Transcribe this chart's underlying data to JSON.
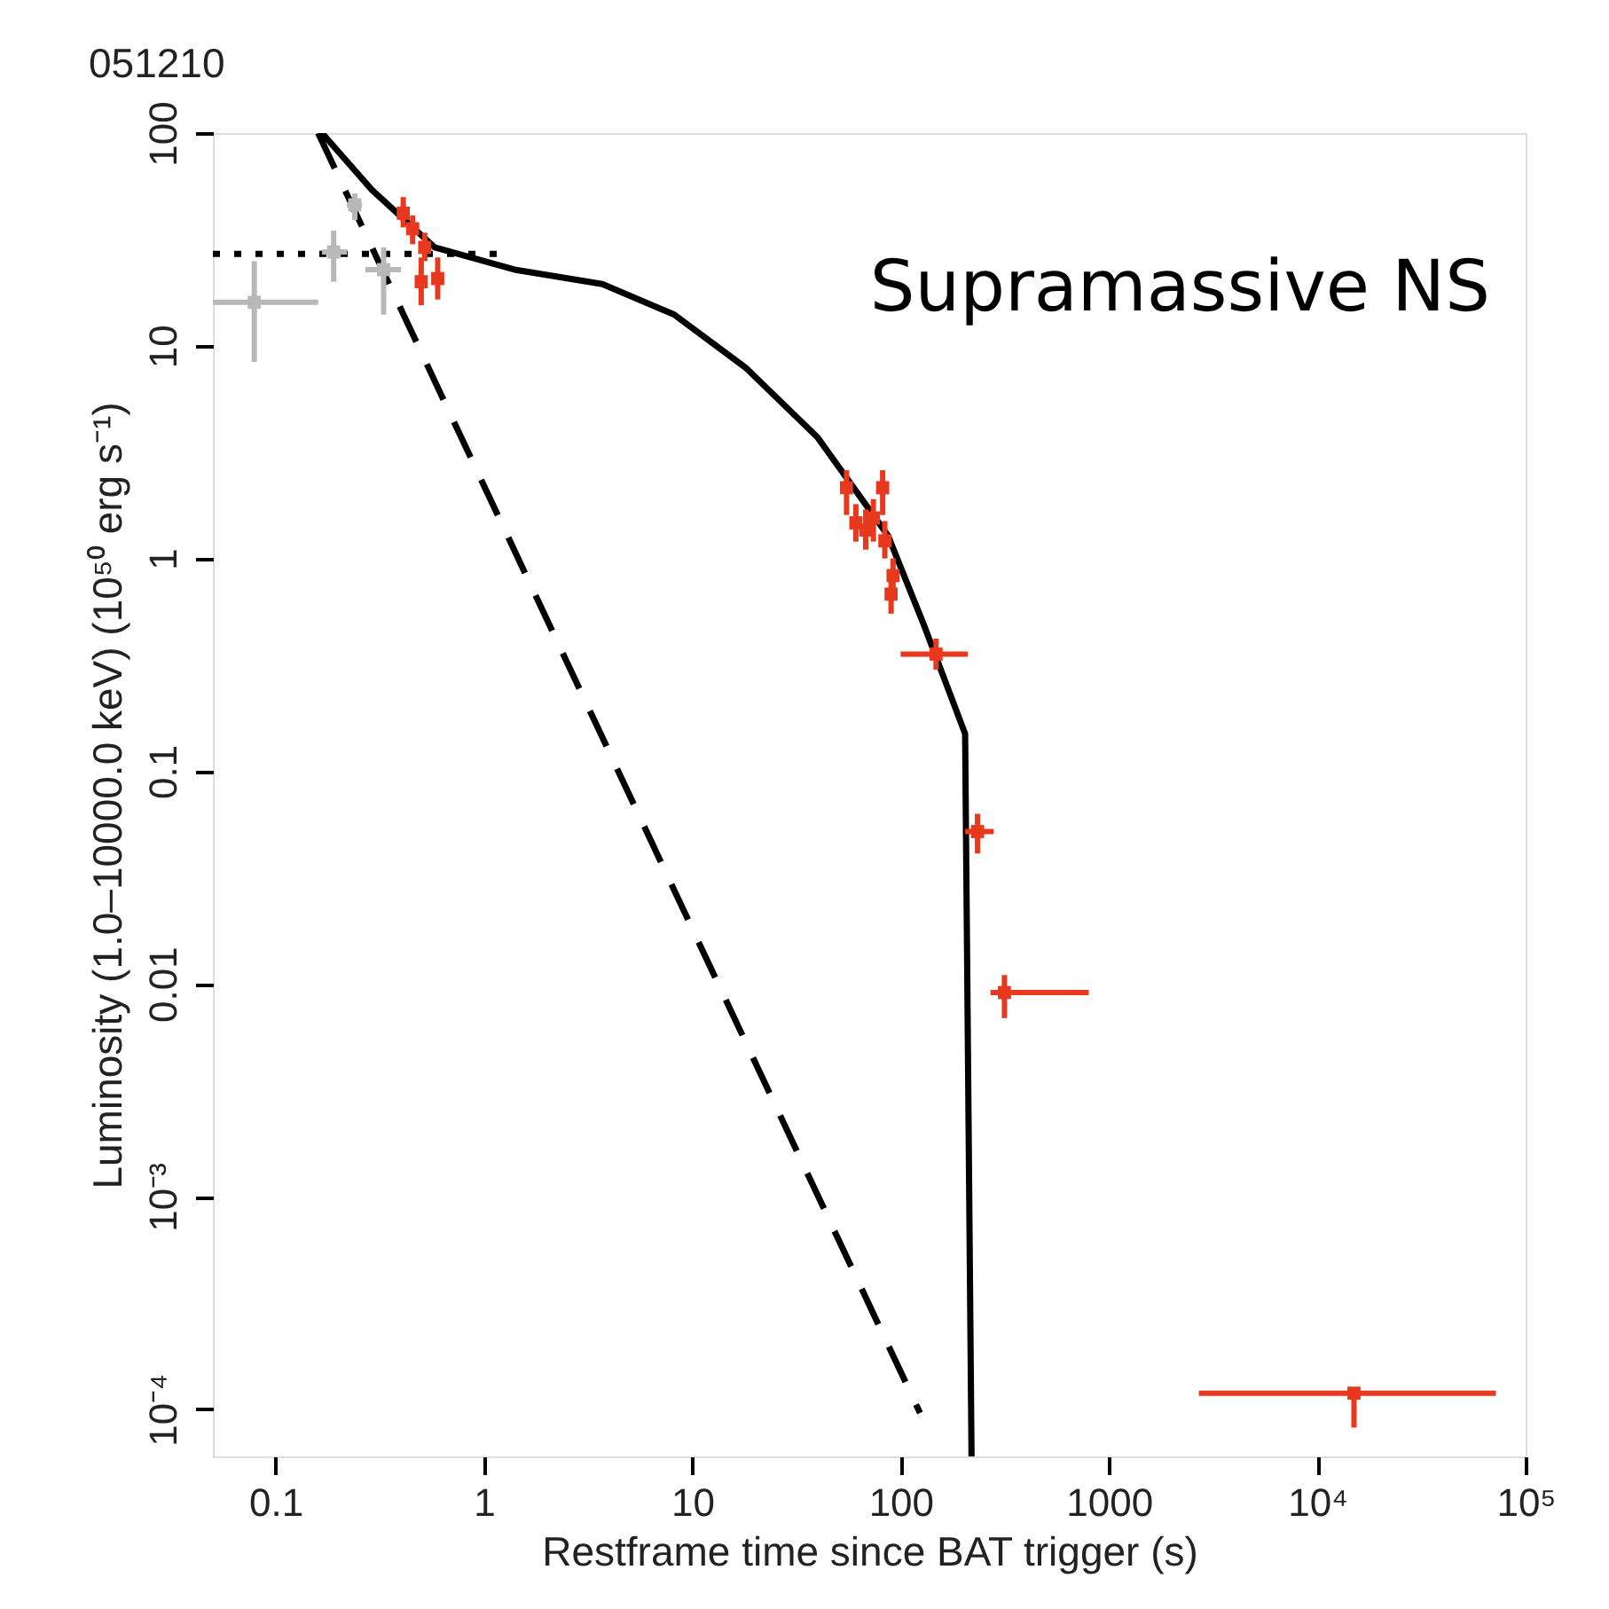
{
  "chart_data": {
    "type": "scatter",
    "title": "051210",
    "xlabel": "Restframe time since BAT trigger (s)",
    "ylabel": "Luminosity (1.0–10000.0 keV) (10⁵⁰ erg s⁻¹)",
    "annotations": [
      "Supramassive NS"
    ],
    "log": "xy",
    "grid": false,
    "xlim": [
      0.05,
      100000
    ],
    "ylim": [
      6e-05,
      100
    ],
    "xticks": [
      0.1,
      1,
      10,
      100,
      1000,
      {
        "value": 10000,
        "label": "10⁴"
      },
      {
        "value": 100000,
        "label": "10⁵"
      }
    ],
    "yticks": [
      {
        "value": 0.0001,
        "label": "10⁻⁴"
      },
      {
        "value": 0.001,
        "label": "10⁻³"
      },
      0.01,
      0.1,
      1,
      10,
      100
    ],
    "series": [
      {
        "type": "line",
        "line_style": "solid",
        "color": "#000000",
        "x": [
          0.167,
          0.29,
          0.58,
          1.4,
          3.7,
          8.2,
          18,
          40,
          87,
          129,
          204,
          219
        ],
        "values": [
          100,
          54,
          29,
          22.8,
          19.5,
          14,
          7.9,
          3.7,
          1.28,
          0.49,
          0.15,
          6e-05
        ]
      },
      {
        "type": "line",
        "line_style": "dashed",
        "color": "#000000",
        "x": [
          0.16,
          124
        ],
        "values": [
          100,
          9.6e-05
        ]
      },
      {
        "type": "line",
        "line_style": "dotted",
        "color": "#000000",
        "x": [
          0.05,
          1.3
        ],
        "values": [
          27,
          27
        ]
      },
      {
        "marker": "square",
        "color": "#b8b8b8",
        "x": [
          0.079,
          0.19,
          0.24,
          0.33
        ],
        "values": [
          16,
          27.6,
          46,
          22.8
        ],
        "errors": [
          [
            8.4,
            25
          ],
          [
            20,
            34.8
          ],
          [
            39,
            52
          ],
          [
            14,
            29
          ]
        ],
        "xerrors": [
          [
            0.05,
            0.16
          ],
          [
            0.167,
            0.22
          ],
          [
            0.22,
            0.26
          ],
          [
            0.27,
            0.4
          ]
        ]
      },
      {
        "marker": "square",
        "color": "#e8391e",
        "x": [
          0.41,
          0.455,
          0.52,
          0.5,
          0.6,
          55,
          61,
          68,
          74,
          82,
          84,
          92,
          90,
          148,
          234,
          315,
          15000
        ],
        "values": [
          42,
          35.5,
          29,
          20,
          20.7,
          2.15,
          1.47,
          1.36,
          1.55,
          2.15,
          1.21,
          0.83,
          0.68,
          0.355,
          0.052,
          0.0091,
          0.000119
        ],
        "errors": [
          [
            36,
            50
          ],
          [
            30,
            41
          ],
          [
            25,
            34
          ],
          [
            15.5,
            26
          ],
          [
            16.5,
            26
          ],
          [
            1.6,
            2.6
          ],
          [
            1.2,
            1.8
          ],
          [
            1.1,
            1.7
          ],
          [
            1.2,
            1.9
          ],
          [
            1.6,
            2.6
          ],
          [
            1.0,
            1.5
          ],
          [
            0.7,
            1.0
          ],
          [
            0.55,
            0.85
          ],
          [
            0.3,
            0.42
          ],
          [
            0.041,
            0.063
          ],
          [
            0.0069,
            0.011
          ],
          [
            8.2e-05,
            0.000119
          ]
        ],
        "xerrors": [
          [
            0.4,
            0.42
          ],
          [
            0.445,
            0.465
          ],
          [
            0.51,
            0.53
          ],
          [
            0.49,
            0.51
          ],
          [
            0.59,
            0.61
          ],
          [
            54,
            56
          ],
          [
            60,
            62
          ],
          [
            67,
            69
          ],
          [
            73,
            75
          ],
          [
            81,
            83
          ],
          [
            83,
            85
          ],
          [
            91,
            93
          ],
          [
            89,
            91
          ],
          [
            100,
            210
          ],
          [
            204,
            280
          ],
          [
            270,
            800
          ],
          [
            2700,
            72000
          ]
        ]
      }
    ]
  }
}
